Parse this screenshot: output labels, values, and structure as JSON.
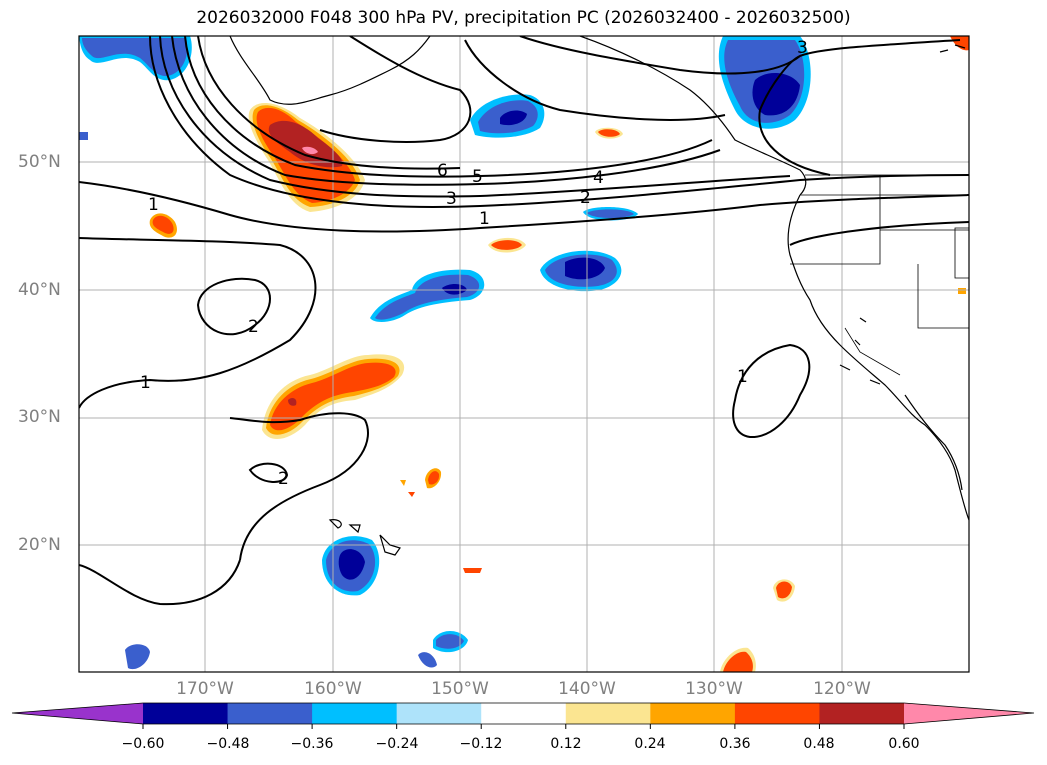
{
  "title": "2026032000 F048 300 hPa PV, precipitation PC (2026032400 - 2026032500)",
  "lat_labels": [
    "50°N",
    "40°N",
    "30°N",
    "20°N"
  ],
  "lon_labels": [
    "170°W",
    "160°W",
    "150°W",
    "140°W",
    "130°W",
    "120°W"
  ],
  "contour_labels": [
    "6",
    "5",
    "4",
    "3",
    "3",
    "2",
    "1",
    "1",
    "2",
    "1",
    "2",
    "1"
  ],
  "colorbar": {
    "ticks": [
      "−0.60",
      "−0.48",
      "−0.36",
      "−0.24",
      "−0.12",
      "0.12",
      "0.24",
      "0.36",
      "0.48",
      "0.60"
    ],
    "colors": [
      "#9933cc",
      "#000099",
      "#3a5fcd",
      "#00bfff",
      "#aee3fa",
      "#ffffff",
      "#fbe591",
      "#ffa500",
      "#ff4500",
      "#b22222",
      "#ff88aa"
    ]
  },
  "colors": {
    "land": "#000000",
    "grid": "#b0b0b0",
    "contour": "#000000"
  }
}
